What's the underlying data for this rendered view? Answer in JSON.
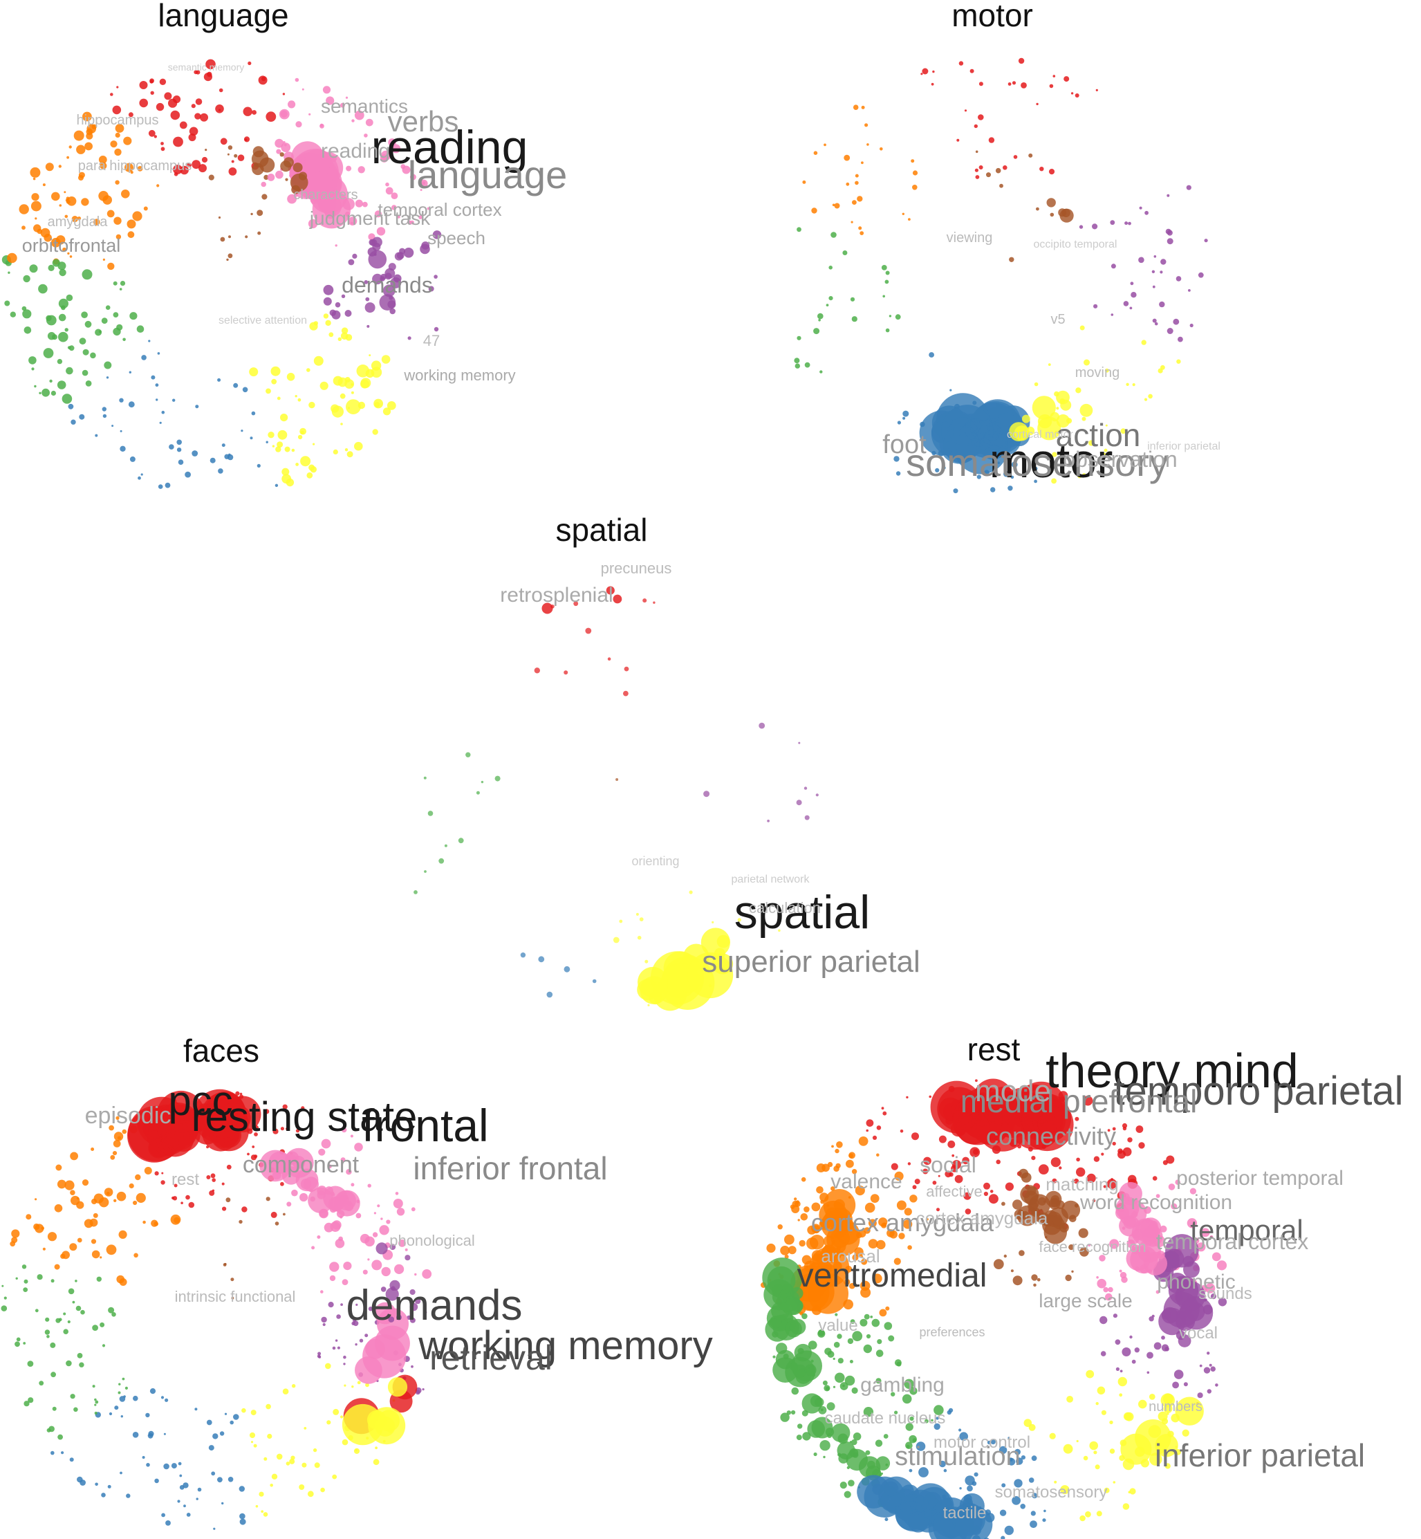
{
  "palette": {
    "red": "#e41a1c",
    "blue": "#377eb8",
    "green": "#4daf4a",
    "purple": "#984ea3",
    "orange": "#ff7f00",
    "yellow": "#ffff33",
    "brown": "#a65628",
    "pink": "#f781bf"
  },
  "panels": [
    {
      "title": "language",
      "labels": [
        {
          "text": "reading",
          "weight": 5
        },
        {
          "text": "language",
          "weight": 4
        },
        {
          "text": "verbs",
          "weight": 3
        },
        {
          "text": "semantics",
          "weight": 2
        },
        {
          "text": "temporal cortex",
          "weight": 2
        },
        {
          "text": "judgment task",
          "weight": 2
        },
        {
          "text": "speech",
          "weight": 2
        },
        {
          "text": "characters",
          "weight": 1
        },
        {
          "text": "demands",
          "weight": 2
        },
        {
          "text": "orbitofrontal",
          "weight": 2
        },
        {
          "text": "hippocampus",
          "weight": 1
        },
        {
          "text": "para hippocampus",
          "weight": 1
        },
        {
          "text": "amygdala",
          "weight": 1
        },
        {
          "text": "working memory",
          "weight": 2
        },
        {
          "text": "selective attention",
          "weight": 1
        },
        {
          "text": "semantic memory",
          "weight": 1
        },
        {
          "text": "reading",
          "weight": 1
        },
        {
          "text": "47",
          "weight": 1
        }
      ]
    },
    {
      "title": "motor",
      "labels": [
        {
          "text": "motor",
          "weight": 5
        },
        {
          "text": "somatosensory",
          "weight": 4
        },
        {
          "text": "action",
          "weight": 3
        },
        {
          "text": "foot",
          "weight": 2
        },
        {
          "text": "observation",
          "weight": 2
        },
        {
          "text": "viewing",
          "weight": 1
        },
        {
          "text": "moving",
          "weight": 1
        },
        {
          "text": "v5",
          "weight": 1
        },
        {
          "text": "occipito temporal",
          "weight": 1
        },
        {
          "text": "inferior parietal",
          "weight": 1
        },
        {
          "text": "cortical motor",
          "weight": 1
        }
      ]
    },
    {
      "title": "spatial",
      "labels": [
        {
          "text": "spatial",
          "weight": 5
        },
        {
          "text": "superior parietal",
          "weight": 3
        },
        {
          "text": "retrosplenial",
          "weight": 2
        },
        {
          "text": "precuneus",
          "weight": 1
        },
        {
          "text": "calculation",
          "weight": 1
        },
        {
          "text": "orienting",
          "weight": 1
        },
        {
          "text": "parietal network",
          "weight": 1
        }
      ]
    },
    {
      "title": "faces",
      "labels": [
        {
          "text": "frontal",
          "weight": 5
        },
        {
          "text": "resting state",
          "weight": 5
        },
        {
          "text": "pcc",
          "weight": 5
        },
        {
          "text": "demands",
          "weight": 4
        },
        {
          "text": "working memory",
          "weight": 4
        },
        {
          "text": "retrieval",
          "weight": 3
        },
        {
          "text": "inferior frontal",
          "weight": 3
        },
        {
          "text": "component",
          "weight": 2
        },
        {
          "text": "episodic",
          "weight": 2
        },
        {
          "text": "phonological",
          "weight": 1
        },
        {
          "text": "intrinsic functional",
          "weight": 1
        },
        {
          "text": "rest",
          "weight": 1
        }
      ]
    },
    {
      "title": "rest",
      "labels": [
        {
          "text": "theory mind",
          "weight": 5
        },
        {
          "text": "temporo parietal",
          "weight": 4
        },
        {
          "text": "medial prefrontal",
          "weight": 3
        },
        {
          "text": "mode",
          "weight": 3
        },
        {
          "text": "connectivity",
          "weight": 2
        },
        {
          "text": "ventromedial",
          "weight": 3
        },
        {
          "text": "temporal",
          "weight": 3
        },
        {
          "text": "temporal cortex",
          "weight": 2
        },
        {
          "text": "posterior temporal",
          "weight": 2
        },
        {
          "text": "word recognition",
          "weight": 2
        },
        {
          "text": "cortex amygdala",
          "weight": 2
        },
        {
          "text": "inferior parietal",
          "weight": 3
        },
        {
          "text": "stimulation",
          "weight": 2
        },
        {
          "text": "gambling",
          "weight": 2
        },
        {
          "text": "valence",
          "weight": 2
        },
        {
          "text": "social",
          "weight": 2
        },
        {
          "text": "phonetic",
          "weight": 2
        },
        {
          "text": "sounds",
          "weight": 1
        },
        {
          "text": "vocal",
          "weight": 1
        },
        {
          "text": "large scale",
          "weight": 2
        },
        {
          "text": "value",
          "weight": 1
        },
        {
          "text": "arousal",
          "weight": 1
        },
        {
          "text": "caudate nucleus",
          "weight": 1
        },
        {
          "text": "motor control",
          "weight": 1
        },
        {
          "text": "somatosensory",
          "weight": 1
        },
        {
          "text": "numbers",
          "weight": 1
        },
        {
          "text": "preferences",
          "weight": 1
        },
        {
          "text": "matching",
          "weight": 1
        },
        {
          "text": "cortex amygdala",
          "weight": 1
        },
        {
          "text": "face recognition",
          "weight": 1
        },
        {
          "text": "affective",
          "weight": 1
        },
        {
          "text": "tactile",
          "weight": 1
        }
      ]
    }
  ]
}
